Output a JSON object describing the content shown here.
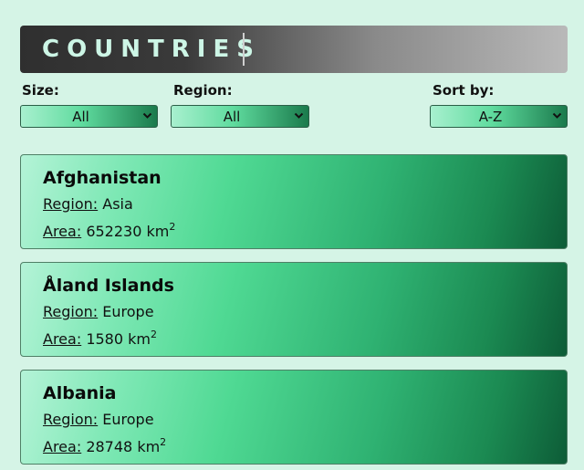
{
  "header": {
    "title": "COUNTRIES"
  },
  "filters": {
    "size": {
      "label": "Size:",
      "value": "All"
    },
    "region": {
      "label": "Region:",
      "value": "All"
    },
    "sort": {
      "label": "Sort by:",
      "value": "A-Z"
    }
  },
  "card_labels": {
    "region": "Region:",
    "area": "Area:",
    "unit": "km",
    "unit_exp": "2"
  },
  "countries": [
    {
      "name": "Afghanistan",
      "region": "Asia",
      "area": "652230"
    },
    {
      "name": "Åland Islands",
      "region": "Europe",
      "area": "1580"
    },
    {
      "name": "Albania",
      "region": "Europe",
      "area": "28748"
    }
  ],
  "colors": {
    "page_background": "#d5f4e6",
    "title_text": "#cdf6e6",
    "accent_green": "#4fd993",
    "dark_green": "#0d5c37"
  },
  "icons": {
    "dropdown": "chevron-down-icon"
  }
}
